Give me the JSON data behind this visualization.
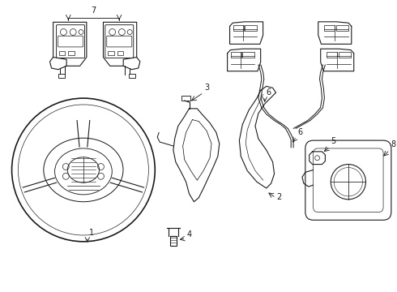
{
  "bg_color": "#ffffff",
  "line_color": "#1a1a1a",
  "lw": 0.8,
  "fig_w": 4.9,
  "fig_h": 3.6,
  "dpi": 100
}
